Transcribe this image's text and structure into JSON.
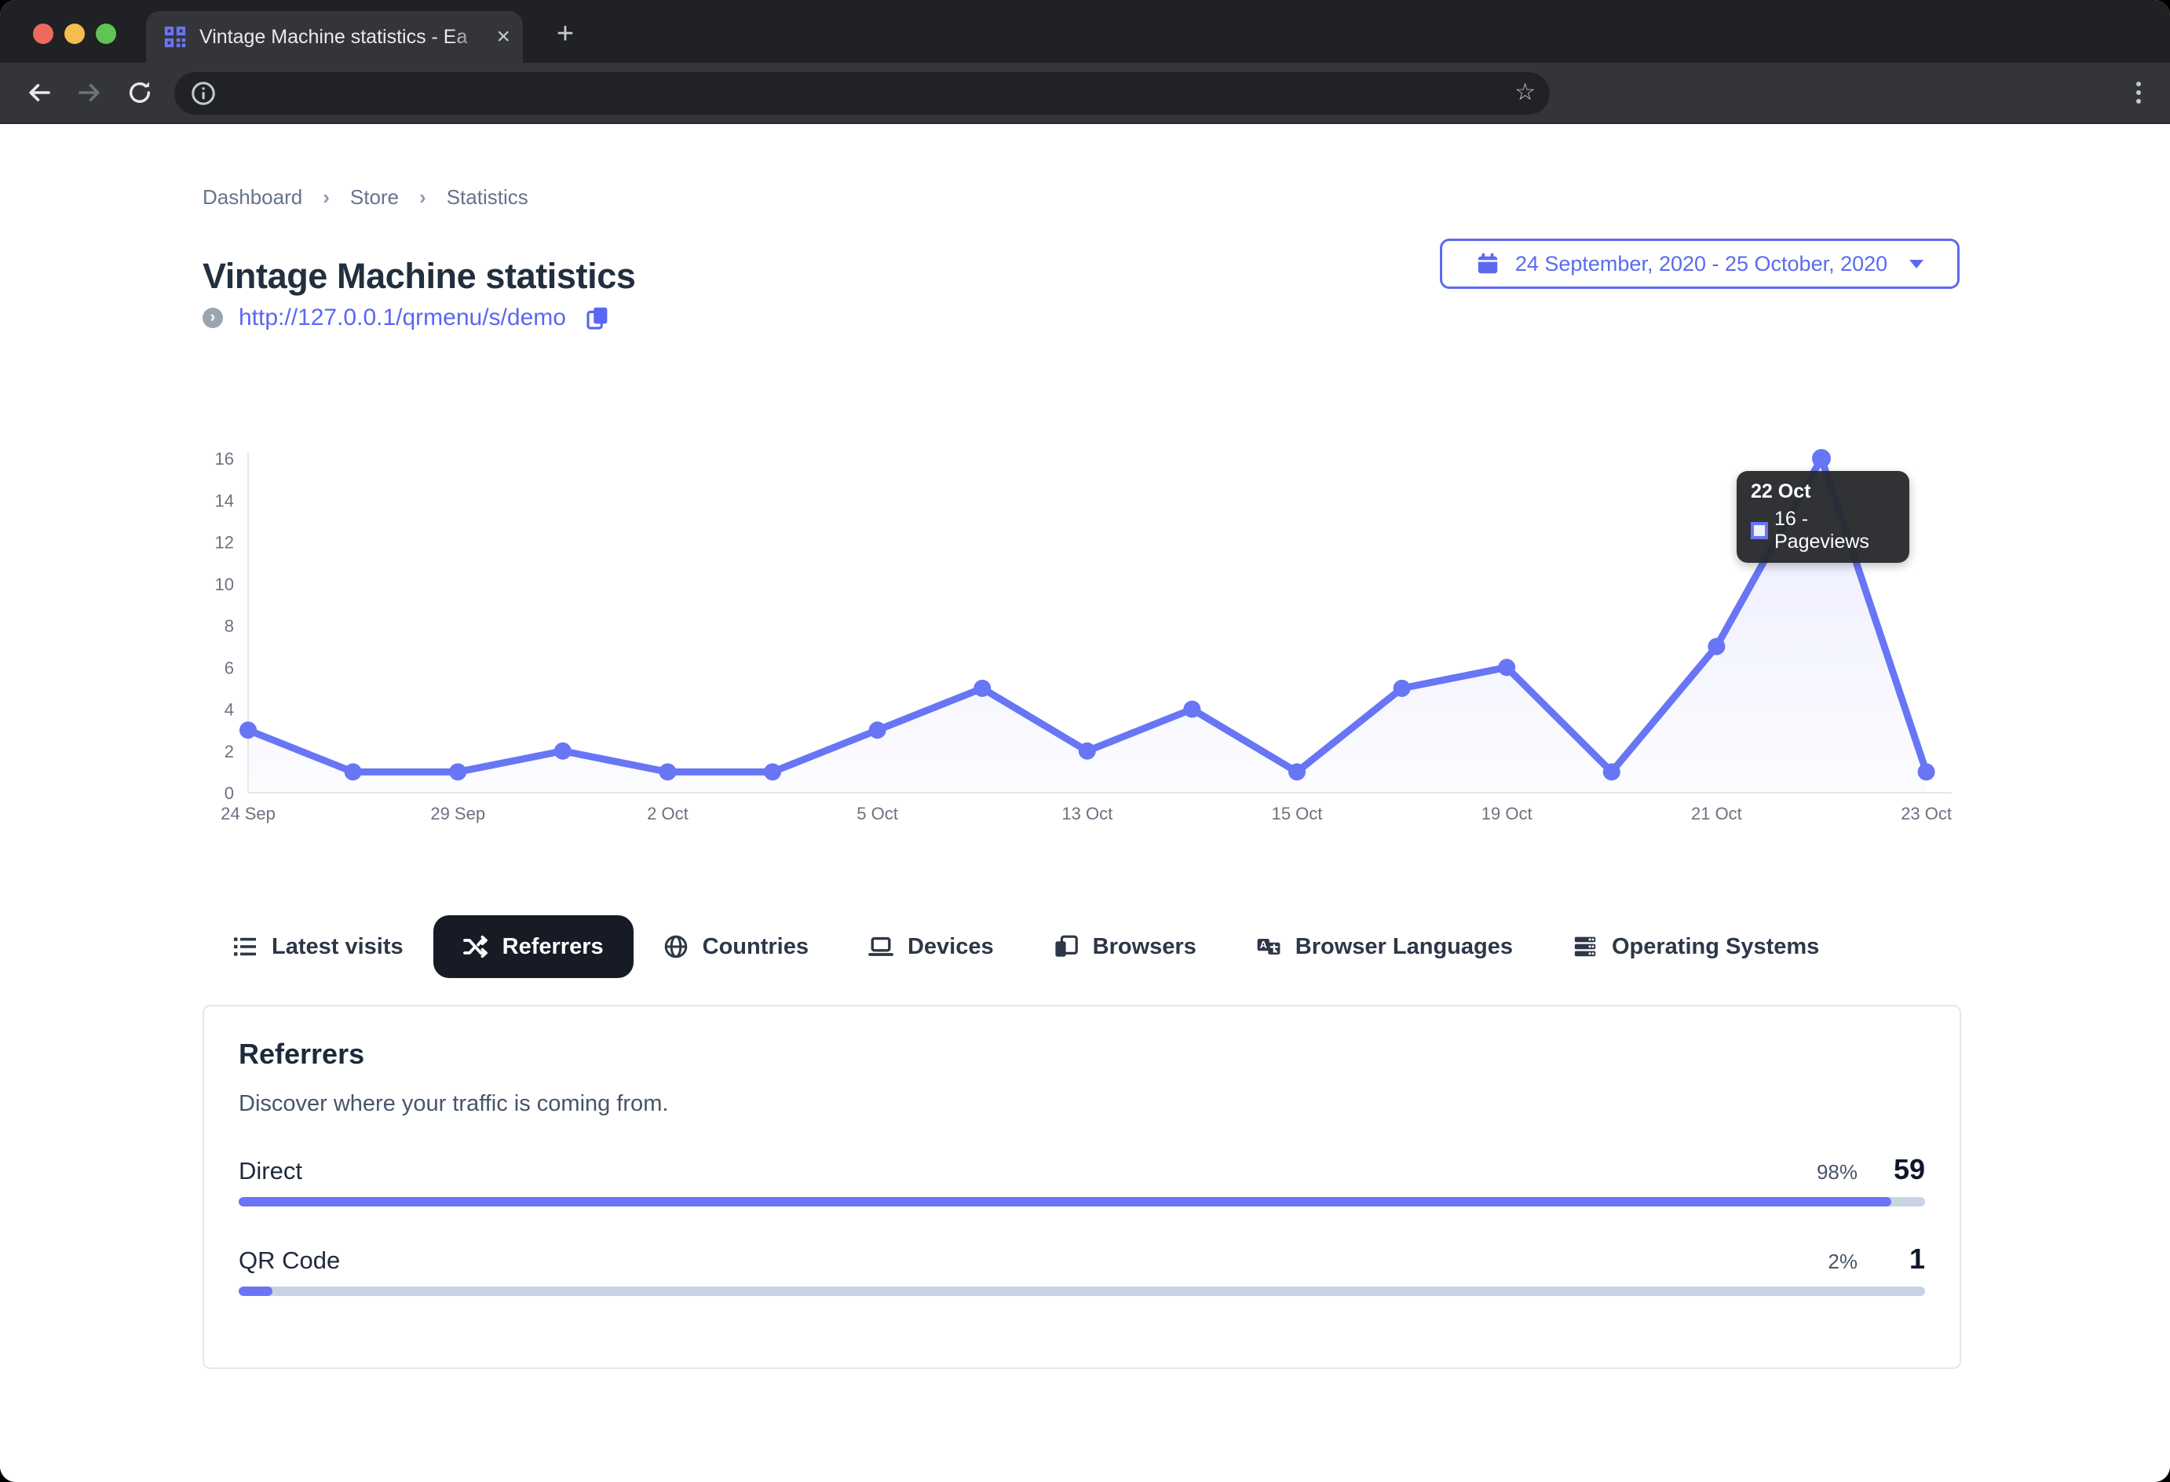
{
  "browser": {
    "tab_title": "Vintage Machine statistics - Ea",
    "close_label": "×",
    "new_tab_label": "+",
    "star_label": "☆"
  },
  "breadcrumb": {
    "items": [
      "Dashboard",
      "Store",
      "Statistics"
    ],
    "separator": "›"
  },
  "header": {
    "title": "Vintage Machine statistics",
    "url": "http://127.0.0.1/qrmenu/s/demo",
    "date_range": "24 September, 2020 - 25 October, 2020"
  },
  "chart_data": {
    "type": "line",
    "series": [
      {
        "name": "Pageviews",
        "values": [
          3,
          1,
          1,
          2,
          1,
          1,
          3,
          5,
          2,
          4,
          1,
          5,
          6,
          1,
          7,
          16,
          1
        ]
      }
    ],
    "x_tick_labels": [
      "24 Sep",
      "29 Sep",
      "2 Oct",
      "5 Oct",
      "13 Oct",
      "15 Oct",
      "19 Oct",
      "21 Oct",
      "23 Oct"
    ],
    "x_tick_indices": [
      0,
      2,
      4,
      6,
      8,
      10,
      12,
      14,
      16
    ],
    "y_ticks": [
      0,
      2,
      4,
      6,
      8,
      10,
      12,
      14,
      16
    ],
    "ylim": [
      0,
      16
    ],
    "grid": false,
    "legend_position": "none",
    "line_color": "#6875F5",
    "tooltip": {
      "title": "22 Oct",
      "label": "16 - Pageviews",
      "point_index": 15
    }
  },
  "tabs": [
    {
      "label": "Latest visits",
      "icon": "list-icon",
      "active": false
    },
    {
      "label": "Referrers",
      "icon": "shuffle-icon",
      "active": true
    },
    {
      "label": "Countries",
      "icon": "globe-icon",
      "active": false
    },
    {
      "label": "Devices",
      "icon": "laptop-icon",
      "active": false
    },
    {
      "label": "Browsers",
      "icon": "browser-icon",
      "active": false
    },
    {
      "label": "Browser Languages",
      "icon": "translate-icon",
      "active": false
    },
    {
      "label": "Operating Systems",
      "icon": "server-icon",
      "active": false
    }
  ],
  "referrers_card": {
    "title": "Referrers",
    "description": "Discover where your traffic is coming from.",
    "rows": [
      {
        "label": "Direct",
        "percent": "98%",
        "value": "59",
        "fraction": 0.98
      },
      {
        "label": "QR Code",
        "percent": "2%",
        "value": "1",
        "fraction": 0.02
      }
    ]
  },
  "colors": {
    "accent": "#6875F5",
    "link": "#5A67F2",
    "track": "#C8D4E4",
    "tab_active_bg": "#171B26",
    "tooltip_bg": "#282A2E"
  }
}
